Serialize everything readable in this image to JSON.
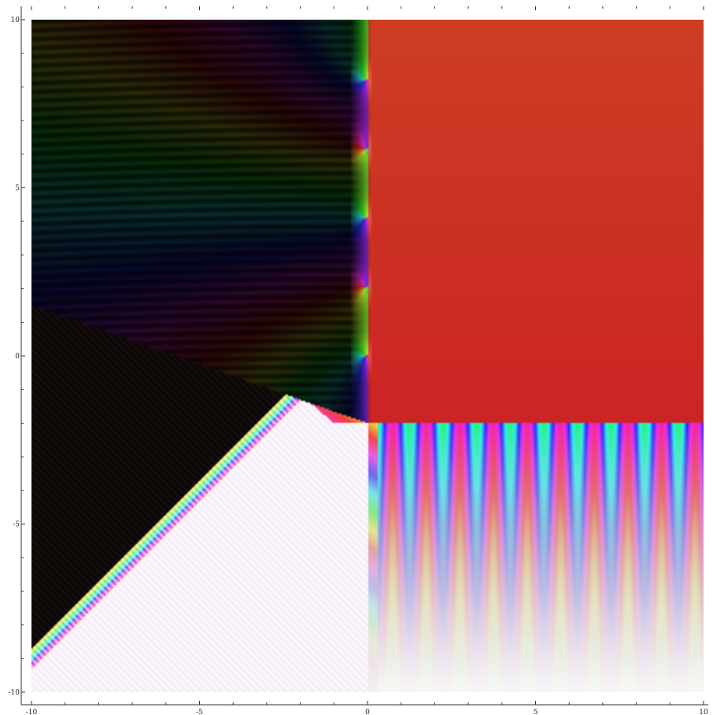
{
  "chart_data": {
    "type": "heatmap",
    "title": "",
    "xlabel": "",
    "ylabel": "",
    "xlim": [
      -10,
      10
    ],
    "ylim": [
      -10,
      10
    ],
    "grid": false,
    "legend": "none",
    "x_ticks": [
      {
        "value": -10,
        "label": "-10"
      },
      {
        "value": -5,
        "label": "-5"
      },
      {
        "value": 0,
        "label": "0"
      },
      {
        "value": 5,
        "label": "5"
      },
      {
        "value": 10,
        "label": "10"
      }
    ],
    "y_ticks": [
      {
        "value": 10,
        "label": "10"
      },
      {
        "value": 5,
        "label": "5"
      },
      {
        "value": 0,
        "label": "0"
      },
      {
        "value": -5,
        "label": "-5"
      },
      {
        "value": -10,
        "label": "-10"
      }
    ],
    "minor_tick_step": 1,
    "colors": {
      "upper_right_hue": "#c8282a",
      "top_orange": "#d4752e",
      "dark_region": "#0a0a0a",
      "light_region": "#f6f6fa"
    }
  }
}
